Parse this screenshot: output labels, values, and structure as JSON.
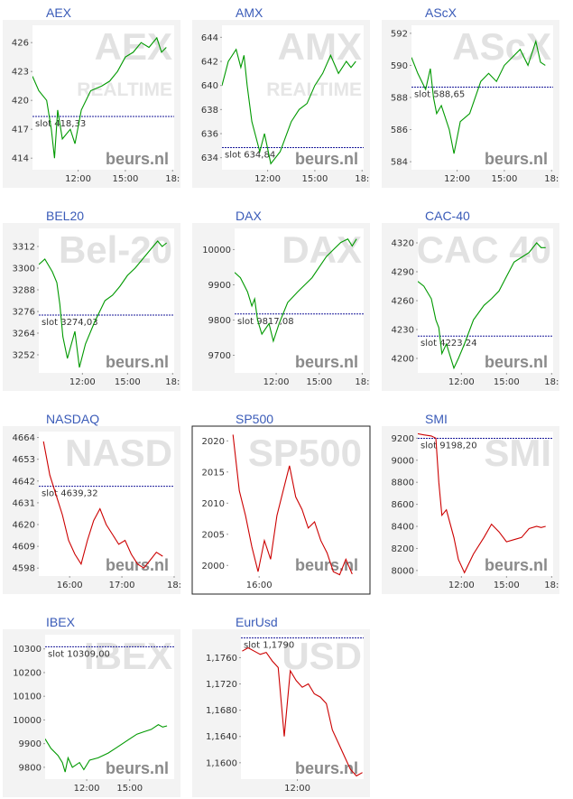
{
  "brand": "beurs.nl",
  "chart_data": [
    {
      "type": "line",
      "title": "AEX",
      "watermark": "AEX",
      "watermark2": "REALTIME",
      "color": "#009900",
      "x": [
        9.1,
        9.5,
        10,
        10.3,
        10.5,
        10.7,
        11,
        11.5,
        11.8,
        12.2,
        12.8,
        13.5,
        14,
        14.5,
        15,
        15.5,
        16,
        16.5,
        17,
        17.3,
        17.6
      ],
      "values": [
        422.5,
        421,
        420,
        417,
        414,
        419,
        416,
        417,
        415.5,
        419,
        421,
        421.5,
        422,
        423,
        424.5,
        425,
        426,
        425.5,
        426.5,
        425,
        425.5
      ],
      "xlim": [
        9.1,
        18.1
      ],
      "xticks": [
        {
          "value": 12,
          "label": "12:00"
        },
        {
          "value": 15,
          "label": "15:00"
        },
        {
          "value": 18,
          "label": "18:"
        }
      ],
      "ylim": [
        412.8,
        427.8
      ],
      "yticks": [
        414,
        417,
        420,
        423,
        426
      ],
      "reference": {
        "value": 418.33,
        "label": "slot 418,33"
      }
    },
    {
      "type": "line",
      "title": "AMX",
      "watermark": "AMX",
      "watermark2": "REALTIME",
      "color": "#009900",
      "x": [
        9.1,
        9.5,
        10,
        10.3,
        10.5,
        10.7,
        11,
        11.5,
        11.8,
        12.2,
        12.8,
        13.5,
        14,
        14.5,
        15,
        15.5,
        16,
        16.5,
        17,
        17.3,
        17.6
      ],
      "values": [
        640,
        642,
        643,
        641.5,
        642.5,
        640,
        637,
        634.5,
        636,
        633.5,
        634.5,
        637,
        638,
        638.5,
        640,
        641,
        642.5,
        641,
        642,
        641.5,
        642
      ],
      "xlim": [
        9.1,
        18.1
      ],
      "xticks": [
        {
          "value": 12,
          "label": "12:00"
        },
        {
          "value": 15,
          "label": "15:00"
        },
        {
          "value": 18,
          "label": "18:"
        }
      ],
      "ylim": [
        633,
        645
      ],
      "yticks": [
        634,
        636,
        638,
        640,
        642,
        644
      ],
      "reference": {
        "value": 634.84,
        "label": "slot 634,84"
      }
    },
    {
      "type": "line",
      "title": "AScX",
      "watermark": "AScX",
      "color": "#009900",
      "x": [
        9.1,
        9.5,
        10,
        10.3,
        10.5,
        10.7,
        11,
        11.5,
        11.8,
        12.2,
        12.8,
        13.5,
        14,
        14.5,
        15,
        15.5,
        16,
        16.5,
        17,
        17.3,
        17.6
      ],
      "values": [
        590.5,
        589.5,
        588.5,
        589.8,
        588,
        587,
        587.5,
        586,
        584.5,
        586.5,
        587,
        589,
        589.5,
        589,
        590,
        590.5,
        591,
        590,
        591.5,
        590.2,
        590
      ],
      "xlim": [
        9.1,
        18.1
      ],
      "xticks": [
        {
          "value": 12,
          "label": "12:00"
        },
        {
          "value": 15,
          "label": "15:00"
        },
        {
          "value": 18,
          "label": "18:"
        }
      ],
      "ylim": [
        583.5,
        592.5
      ],
      "yticks": [
        584,
        586,
        588,
        590,
        592
      ],
      "reference": {
        "value": 588.65,
        "label": "slot 588,65"
      }
    },
    {
      "type": "line",
      "title": "BEL20",
      "watermark": "Bel-20",
      "color": "#009900",
      "x": [
        9.1,
        9.5,
        10,
        10.3,
        10.5,
        10.7,
        11,
        11.5,
        11.8,
        12.2,
        12.8,
        13.5,
        14,
        14.5,
        15,
        15.5,
        16,
        16.5,
        17,
        17.3,
        17.6
      ],
      "values": [
        3302,
        3305,
        3298,
        3292,
        3280,
        3262,
        3250,
        3265,
        3245,
        3258,
        3270,
        3282,
        3285,
        3290,
        3296,
        3300,
        3305,
        3310,
        3315,
        3312,
        3314
      ],
      "xlim": [
        9.1,
        18.1
      ],
      "xticks": [
        {
          "value": 12,
          "label": "12:00"
        },
        {
          "value": 15,
          "label": "15:00"
        },
        {
          "value": 18,
          "label": "18:"
        }
      ],
      "ylim": [
        3242,
        3322
      ],
      "yticks": [
        3252,
        3264,
        3276,
        3288,
        3300,
        3312
      ],
      "reference": {
        "value": 3274.03,
        "label": "slot 3274,03"
      }
    },
    {
      "type": "line",
      "title": "DAX",
      "watermark": "DAX",
      "color": "#009900",
      "x": [
        9.1,
        9.5,
        10,
        10.3,
        10.5,
        10.7,
        11,
        11.5,
        11.8,
        12.2,
        12.8,
        13.5,
        14,
        14.5,
        15,
        15.5,
        16,
        16.5,
        17,
        17.3,
        17.6
      ],
      "values": [
        9935,
        9920,
        9880,
        9840,
        9860,
        9800,
        9760,
        9790,
        9740,
        9790,
        9850,
        9880,
        9900,
        9920,
        9950,
        9980,
        10000,
        10020,
        10030,
        10010,
        10030
      ],
      "xlim": [
        9.1,
        18.1
      ],
      "xticks": [
        {
          "value": 12,
          "label": "12:00"
        },
        {
          "value": 15,
          "label": "15:00"
        },
        {
          "value": 18,
          "label": "18:"
        }
      ],
      "ylim": [
        9650,
        10060
      ],
      "yticks": [
        9700,
        9800,
        9900,
        10000
      ],
      "reference": {
        "value": 9817.08,
        "label": "slot 9817,08"
      }
    },
    {
      "type": "line",
      "title": "CAC-40",
      "watermark": "CAC 40",
      "color": "#009900",
      "x": [
        9.1,
        9.5,
        10,
        10.3,
        10.5,
        10.7,
        11,
        11.5,
        11.8,
        12.2,
        12.8,
        13.5,
        14,
        14.5,
        15,
        15.5,
        16,
        16.5,
        17,
        17.3,
        17.6
      ],
      "values": [
        4280,
        4275,
        4262,
        4240,
        4232,
        4205,
        4215,
        4190,
        4200,
        4215,
        4240,
        4255,
        4262,
        4270,
        4285,
        4300,
        4305,
        4310,
        4320,
        4315,
        4315
      ],
      "xlim": [
        9.1,
        18.1
      ],
      "xticks": [
        {
          "value": 12,
          "label": "12:00"
        },
        {
          "value": 15,
          "label": "15:00"
        },
        {
          "value": 18,
          "label": "18:"
        }
      ],
      "ylim": [
        4185,
        4335
      ],
      "yticks": [
        4200,
        4230,
        4260,
        4290,
        4320
      ],
      "reference": {
        "value": 4223.24,
        "label": "slot 4223,24"
      }
    },
    {
      "type": "line",
      "title": "NASDAQ",
      "watermark": "NASD",
      "color": "#cc0000",
      "x": [
        15.5,
        15.62,
        15.74,
        15.86,
        15.98,
        16.1,
        16.22,
        16.34,
        16.46,
        16.58,
        16.7,
        16.82,
        16.94,
        17.06,
        17.18,
        17.3,
        17.42,
        17.54,
        17.66,
        17.78
      ],
      "values": [
        4662,
        4645,
        4635,
        4625,
        4612,
        4605,
        4600,
        4612,
        4622,
        4628,
        4620,
        4615,
        4610,
        4612,
        4605,
        4600,
        4598,
        4602,
        4606,
        4604
      ],
      "xlim": [
        15.41,
        18.0
      ],
      "xticks": [
        {
          "value": 16,
          "label": "16:00"
        },
        {
          "value": 17,
          "label": "17:00"
        },
        {
          "value": 18,
          "label": "18:"
        }
      ],
      "ylim": [
        4594,
        4667
      ],
      "yticks": [
        4598,
        4609,
        4620,
        4631,
        4642,
        4653,
        4664
      ],
      "reference": {
        "value": 4639.32,
        "label": "slot 4639,32"
      }
    },
    {
      "type": "line",
      "title": "SP500",
      "watermark": "SP500",
      "color": "#cc0000",
      "x": [
        15.5,
        15.62,
        15.74,
        15.86,
        15.98,
        16.1,
        16.22,
        16.34,
        16.46,
        16.58,
        16.7,
        16.82,
        16.94,
        17.06,
        17.18,
        17.3,
        17.42,
        17.54,
        17.66,
        17.78
      ],
      "values": [
        2021,
        2012,
        2008,
        2003,
        1999,
        2004,
        2001,
        2008,
        2012,
        2016,
        2011,
        2009,
        2006,
        2007,
        2004,
        2002,
        1999,
        1998.5,
        2001,
        1998.6
      ],
      "xlim": [
        15.41,
        18.0
      ],
      "xticks": [
        {
          "value": 16,
          "label": "16:00"
        }
      ],
      "ylim": [
        1998.3,
        2021.5
      ],
      "yticks": [
        2000,
        2005,
        2010,
        2015,
        2020
      ]
    },
    {
      "type": "line",
      "title": "SMI",
      "watermark": "SMI",
      "color": "#cc0000",
      "x": [
        9.1,
        9.5,
        10,
        10.3,
        10.5,
        10.7,
        11,
        11.5,
        11.8,
        12.2,
        12.8,
        13.5,
        14,
        14.5,
        15,
        15.5,
        16,
        16.5,
        17,
        17.3,
        17.6
      ],
      "values": [
        9240,
        9230,
        9220,
        9200,
        8800,
        8500,
        8550,
        8300,
        8100,
        7980,
        8150,
        8300,
        8420,
        8350,
        8260,
        8280,
        8300,
        8380,
        8400,
        8390,
        8400
      ],
      "xlim": [
        9.1,
        18.1
      ],
      "xticks": [
        {
          "value": 12,
          "label": "12:00"
        },
        {
          "value": 15,
          "label": "15:00"
        },
        {
          "value": 18,
          "label": "18:"
        }
      ],
      "ylim": [
        7950,
        9260
      ],
      "yticks": [
        8000,
        8200,
        8400,
        8600,
        8800,
        9000,
        9200
      ],
      "reference": {
        "value": 9198.2,
        "label": "slot 9198,20"
      }
    },
    {
      "type": "line",
      "title": "IBEX",
      "watermark": "IBEX",
      "color": "#009900",
      "x": [
        9.1,
        9.5,
        10,
        10.3,
        10.5,
        10.7,
        11,
        11.5,
        11.8,
        12.2,
        12.8,
        13.5,
        14,
        14.5,
        15,
        15.5,
        16,
        16.5,
        17,
        17.3,
        17.6
      ],
      "values": [
        9920,
        9880,
        9850,
        9820,
        9780,
        9840,
        9800,
        9820,
        9790,
        9830,
        9840,
        9860,
        9880,
        9900,
        9920,
        9940,
        9950,
        9960,
        9980,
        9970,
        9975
      ],
      "xlim": [
        9.1,
        18.1
      ],
      "xticks": [
        {
          "value": 12,
          "label": "12:00"
        },
        {
          "value": 15,
          "label": "15:00"
        }
      ],
      "ylim": [
        9750,
        10360
      ],
      "yticks": [
        9800,
        9900,
        10000,
        10100,
        10200,
        10300
      ],
      "reference": {
        "value": 10309,
        "label": "slot 10309,00"
      }
    },
    {
      "type": "line",
      "title": "EurUsd",
      "watermark": "USD",
      "color": "#cc0000",
      "x": [
        7.5,
        7.99,
        8.48,
        8.97,
        9.46,
        9.95,
        10.44,
        10.93,
        11.42,
        11.91,
        12.4,
        12.89,
        13.38,
        13.87,
        14.36,
        14.85,
        15.34,
        15.83,
        16.32,
        16.81,
        17.3
      ],
      "values": [
        1.177,
        1.1775,
        1.177,
        1.1765,
        1.1768,
        1.1755,
        1.1745,
        1.164,
        1.174,
        1.1725,
        1.1715,
        1.172,
        1.1705,
        1.17,
        1.169,
        1.165,
        1.163,
        1.161,
        1.159,
        1.158,
        1.1585
      ],
      "xlim": [
        7.4,
        17.4
      ],
      "xticks": [
        {
          "value": 12,
          "label": "12:00"
        }
      ],
      "ylim": [
        1.1575,
        1.1795
      ],
      "yticks": [
        {
          "value": 1.16,
          "label": "1,1600"
        },
        {
          "value": 1.164,
          "label": "1,1640"
        },
        {
          "value": 1.168,
          "label": "1,1680"
        },
        {
          "value": 1.172,
          "label": "1,1720"
        },
        {
          "value": 1.176,
          "label": "1,1760"
        }
      ],
      "reference": {
        "value": 1.179,
        "label": "slot 1,1790"
      }
    }
  ]
}
